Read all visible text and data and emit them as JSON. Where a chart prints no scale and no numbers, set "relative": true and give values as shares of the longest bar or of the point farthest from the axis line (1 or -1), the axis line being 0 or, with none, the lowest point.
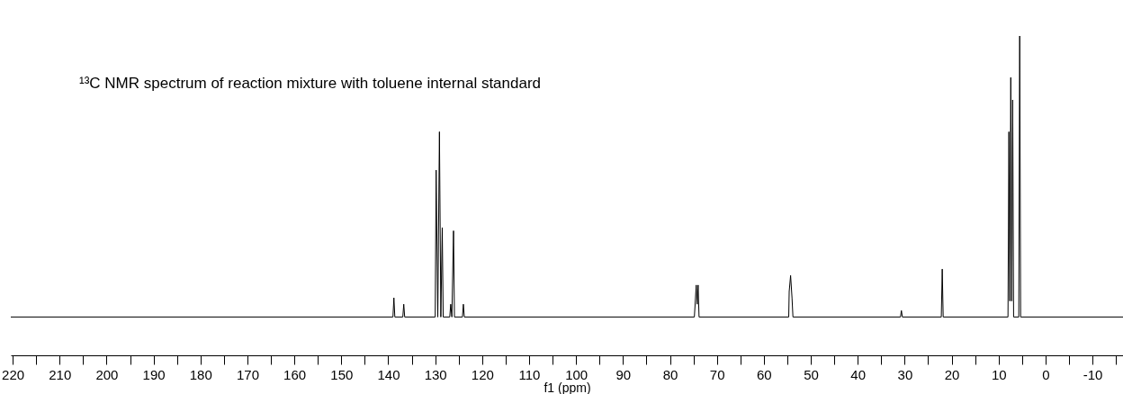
{
  "chart_data": {
    "type": "line",
    "relative": true,
    "xlabel": "f1 (ppm)",
    "grid": false,
    "annotations": [
      "¹³C NMR spectrum of reaction mixture with toluene internal standard"
    ],
    "xlim": [
      220.4,
      -16.5
    ],
    "xticks": [
      220,
      {
        "value": 215,
        "label": null
      },
      210,
      {
        "value": 205,
        "label": null
      },
      200,
      {
        "value": 195,
        "label": null
      },
      190,
      {
        "value": 185,
        "label": null
      },
      180,
      {
        "value": 175,
        "label": null
      },
      170,
      {
        "value": 165,
        "label": null
      },
      160,
      {
        "value": 155,
        "label": null
      },
      150,
      {
        "value": 145,
        "label": null
      },
      140,
      {
        "value": 135,
        "label": null
      },
      130,
      {
        "value": 125,
        "label": null
      },
      120,
      {
        "value": 115,
        "label": null
      },
      110,
      {
        "value": 105,
        "label": null
      },
      100,
      {
        "value": 95,
        "label": null
      },
      90,
      {
        "value": 85,
        "label": null
      },
      80,
      {
        "value": 75,
        "label": null
      },
      70,
      {
        "value": 65,
        "label": null
      },
      60,
      {
        "value": 55,
        "label": null
      },
      50,
      {
        "value": 45,
        "label": null
      },
      40,
      {
        "value": 35,
        "label": null
      },
      30,
      {
        "value": 25,
        "label": null
      },
      20,
      {
        "value": 15,
        "label": null
      },
      10,
      {
        "value": 5,
        "label": null
      },
      0,
      {
        "value": -5,
        "label": null
      },
      -10,
      {
        "value": -15,
        "label": null
      }
    ],
    "series": [
      {
        "color": "#000000",
        "x": [
          220.4,
          139.0,
          138.8,
          138.6,
          136.9,
          136.7,
          136.5,
          130.0,
          129.8,
          129.45,
          129.1,
          128.8,
          128.5,
          128.3,
          126.9,
          126.7,
          126.45,
          126.1,
          125.9,
          124.2,
          124.0,
          123.8,
          74.8,
          74.4,
          74.2,
          74.0,
          73.8,
          54.7,
          54.6,
          54.3,
          54.0,
          53.8,
          30.9,
          30.7,
          30.5,
          22.2,
          22.0,
          21.8,
          8.0,
          7.8,
          7.6,
          7.4,
          7.2,
          7.0,
          6.8,
          5.7,
          5.5,
          5.3,
          -16.5
        ],
        "values": [
          0.12,
          0.12,
          0.18,
          0.12,
          0.12,
          0.16,
          0.12,
          0.12,
          0.58,
          0.12,
          0.7,
          0.12,
          0.4,
          0.12,
          0.12,
          0.16,
          0.12,
          0.39,
          0.12,
          0.12,
          0.16,
          0.12,
          0.12,
          0.22,
          0.16,
          0.22,
          0.12,
          0.12,
          0.2,
          0.25,
          0.18,
          0.12,
          0.12,
          0.14,
          0.12,
          0.12,
          0.27,
          0.12,
          0.12,
          0.7,
          0.17,
          0.87,
          0.17,
          0.8,
          0.12,
          0.12,
          1.0,
          0.12,
          0.12
        ]
      }
    ]
  }
}
